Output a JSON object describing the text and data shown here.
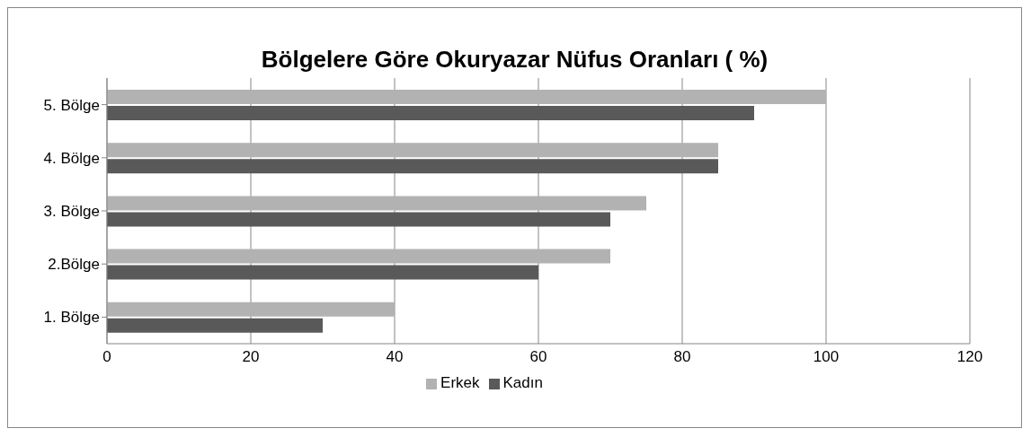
{
  "chart_data": {
    "type": "bar",
    "orientation": "horizontal",
    "title": "Bölgelere Göre Okuryazar Nüfus Oranları ( %)",
    "categories": [
      "5. Bölge",
      "4. Bölge",
      "3. Bölge",
      "2.Bölge",
      "1. Bölge"
    ],
    "series": [
      {
        "name": "Erkek",
        "color": "#b2b2b2",
        "values": [
          100,
          85,
          75,
          70,
          40
        ]
      },
      {
        "name": "Kadın",
        "color": "#595959",
        "values": [
          90,
          85,
          70,
          60,
          30
        ]
      }
    ],
    "xlim": [
      0,
      120
    ],
    "xticks": [
      0,
      20,
      40,
      60,
      80,
      100,
      120
    ],
    "grid": "x",
    "legend": "bottom"
  }
}
